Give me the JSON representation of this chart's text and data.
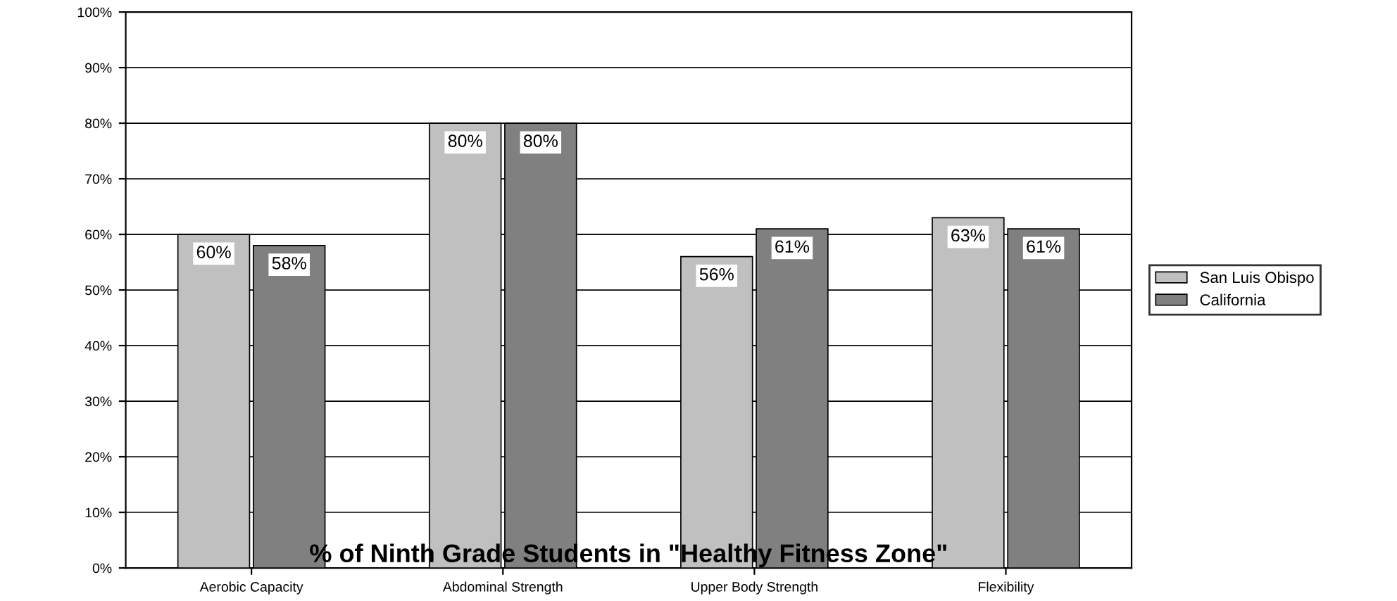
{
  "chart_data": {
    "type": "bar",
    "title": "% of Ninth Grade Students in \"Healthy Fitness Zone\"",
    "categories": [
      "Aerobic Capacity",
      "Abdominal Strength",
      "Upper Body Strength",
      "Flexibility"
    ],
    "series": [
      {
        "name": "San Luis Obispo",
        "color": "#c0c0c0",
        "values": [
          60,
          80,
          56,
          63
        ],
        "value_labels": [
          "60%",
          "80%",
          "56%",
          "63%"
        ]
      },
      {
        "name": "California",
        "color": "#808080",
        "values": [
          58,
          80,
          61,
          61
        ],
        "value_labels": [
          "58%",
          "80%",
          "61%",
          "61%"
        ]
      }
    ],
    "ylim": [
      0,
      100
    ],
    "yticks": [
      {
        "value": 0,
        "label": "0%"
      },
      {
        "value": 10,
        "label": "10%"
      },
      {
        "value": 20,
        "label": "20%"
      },
      {
        "value": 30,
        "label": "30%"
      },
      {
        "value": 40,
        "label": "40%"
      },
      {
        "value": 50,
        "label": "50%"
      },
      {
        "value": 60,
        "label": "60%"
      },
      {
        "value": 70,
        "label": "70%"
      },
      {
        "value": 80,
        "label": "80%"
      },
      {
        "value": 90,
        "label": "90%"
      },
      {
        "value": 100,
        "label": "100%"
      }
    ],
    "grid": "y",
    "legend": "right"
  }
}
